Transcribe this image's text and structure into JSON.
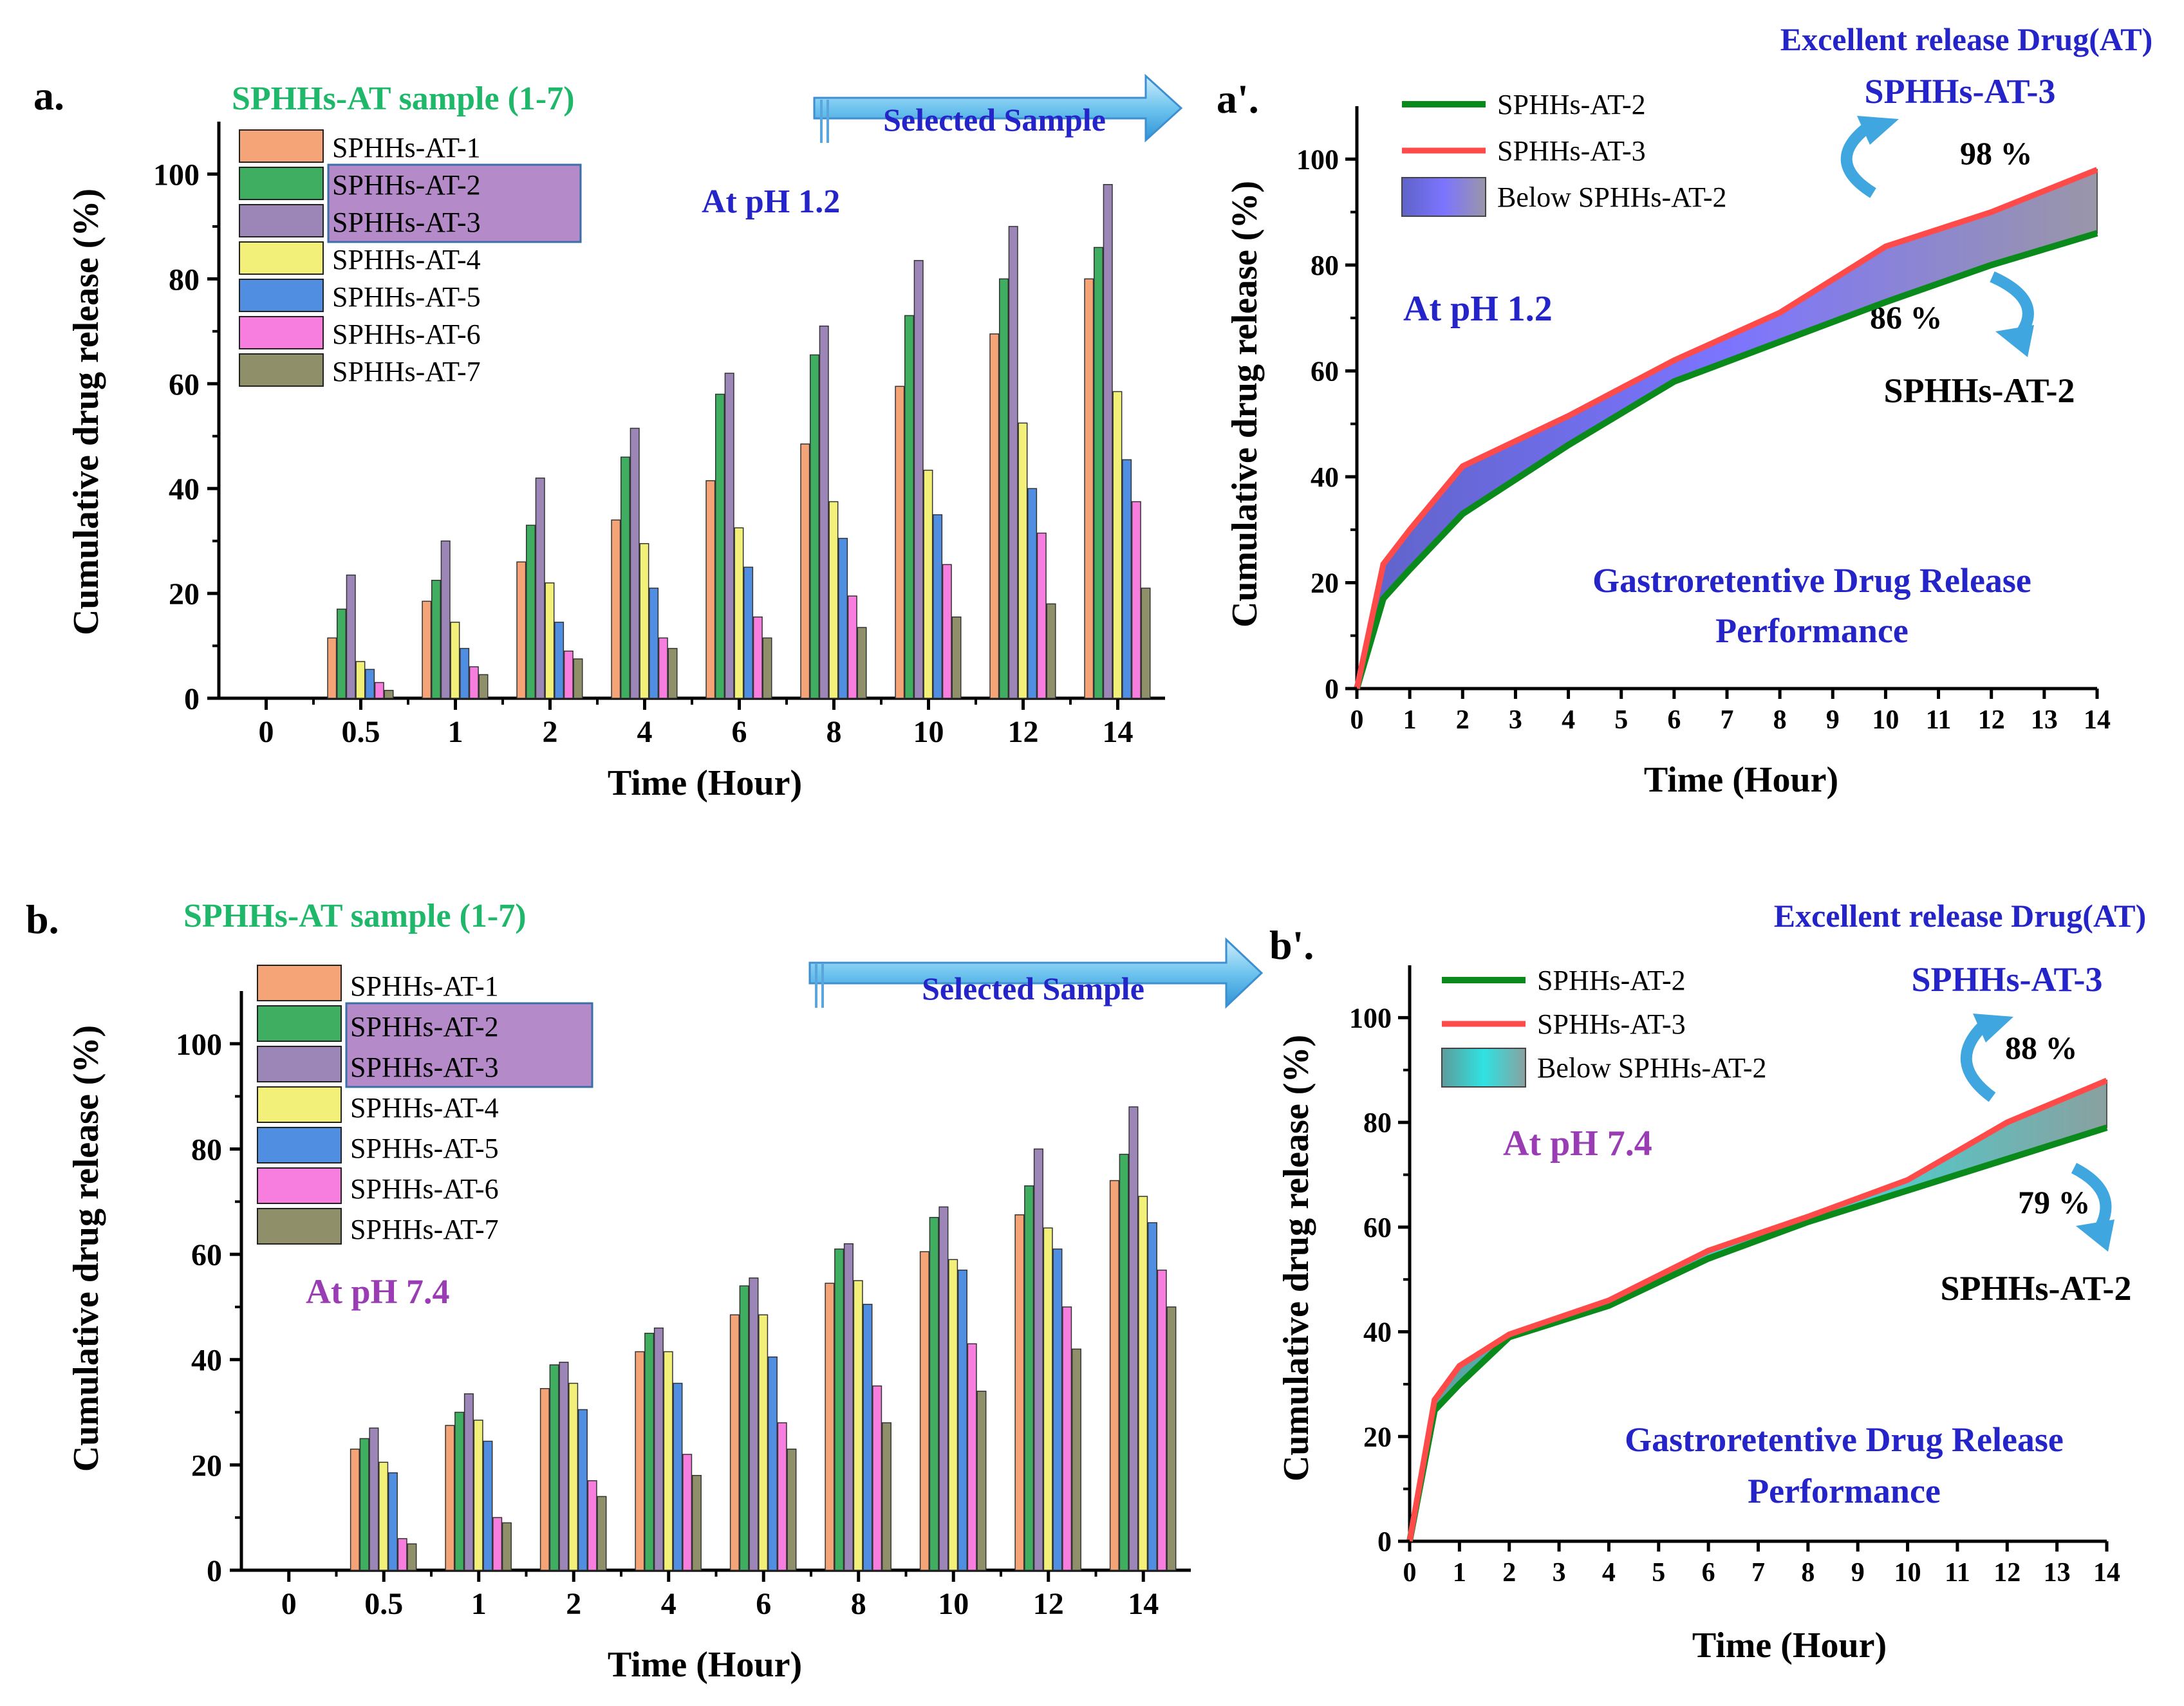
{
  "colors": {
    "s1": "#f5a477",
    "s2": "#3fae60",
    "s3": "#9c86b8",
    "s4": "#f3f07a",
    "s5": "#4f8ee0",
    "s6": "#f77dde",
    "s7": "#8f8f6a",
    "green_line": "#0b8a1c",
    "red_line": "#ff4a4a",
    "fill_a": "#7b6ff2",
    "fill_b": "#2fd8d8",
    "title_green": "#1fb86a",
    "text_blue": "#2424c8",
    "text_purple": "#9a3db4",
    "arrow_blue": "#3fa6e0",
    "highlight": "#b48ac9"
  },
  "panels": [
    {
      "label": "a.",
      "title": "SPHHs-AT sample (1-7)",
      "ph_label": "At pH 1.2",
      "arrow_label": "Selected Sample",
      "legend": [
        "SPHHs-AT-1",
        "SPHHs-AT-2",
        "SPHHs-AT-3",
        "SPHHs-AT-4",
        "SPHHs-AT-5",
        "SPHHs-AT-6",
        "SPHHs-AT-7"
      ]
    },
    {
      "label": "a'.",
      "top_note": "Excellent release Drug(AT)",
      "top_sample": "SPHHs-AT-3",
      "top_pct": "98 %",
      "bottom_pct": "86 %",
      "bottom_sample": "SPHHs-AT-2",
      "ph_label": "At pH 1.2",
      "performance_line1": "Gastroretentive Drug Release",
      "performance_line2": "Performance",
      "legend": [
        "SPHHs-AT-2",
        "SPHHs-AT-3",
        "Below SPHHs-AT-2"
      ]
    },
    {
      "label": "b.",
      "title": "SPHHs-AT sample (1-7)",
      "ph_label": "At pH 7.4",
      "arrow_label": "Selected Sample",
      "legend": [
        "SPHHs-AT-1",
        "SPHHs-AT-2",
        "SPHHs-AT-3",
        "SPHHs-AT-4",
        "SPHHs-AT-5",
        "SPHHs-AT-6",
        "SPHHs-AT-7"
      ]
    },
    {
      "label": "b'.",
      "top_note": "Excellent release Drug(AT)",
      "top_sample": "SPHHs-AT-3",
      "top_pct": "88 %",
      "bottom_pct": "79 %",
      "bottom_sample": "SPHHs-AT-2",
      "ph_label": "At pH 7.4",
      "performance_line1": "Gastroretentive Drug Release",
      "performance_line2": "Performance",
      "legend": [
        "SPHHs-AT-2",
        "SPHHs-AT-3",
        "Below SPHHs-AT-2"
      ]
    }
  ],
  "chart_data": [
    {
      "type": "bar",
      "title": "SPHHs-AT sample (1-7)",
      "xlabel": "Time (Hour)",
      "ylabel": "Cumulative drug release (%)",
      "ylim": [
        0,
        110
      ],
      "yticks": [
        "0",
        "20",
        "40",
        "60",
        "80",
        "100"
      ],
      "categories": [
        "0",
        "0.5",
        "1",
        "2",
        "4",
        "6",
        "8",
        "10",
        "12",
        "14"
      ],
      "series": [
        {
          "name": "SPHHs-AT-1",
          "values": [
            0,
            11.5,
            18.5,
            26,
            34,
            41.5,
            48.5,
            59.5,
            69.5,
            80
          ]
        },
        {
          "name": "SPHHs-AT-2",
          "values": [
            0,
            17,
            22.5,
            33,
            46,
            58,
            65.5,
            73,
            80,
            86
          ]
        },
        {
          "name": "SPHHs-AT-3",
          "values": [
            0,
            23.5,
            30,
            42,
            51.5,
            62,
            71,
            83.5,
            90,
            98
          ]
        },
        {
          "name": "SPHHs-AT-4",
          "values": [
            0,
            7,
            14.5,
            22,
            29.5,
            32.5,
            37.5,
            43.5,
            52.5,
            58.5
          ]
        },
        {
          "name": "SPHHs-AT-5",
          "values": [
            0,
            5.5,
            9.5,
            14.5,
            21,
            25,
            30.5,
            35,
            40,
            45.5
          ]
        },
        {
          "name": "SPHHs-AT-6",
          "values": [
            0,
            3,
            6,
            9,
            11.5,
            15.5,
            19.5,
            25.5,
            31.5,
            37.5
          ]
        },
        {
          "name": "SPHHs-AT-7",
          "values": [
            0,
            1.5,
            4.5,
            7.5,
            9.5,
            11.5,
            13.5,
            15.5,
            18,
            21
          ]
        }
      ]
    },
    {
      "type": "area",
      "xlabel": "Time (Hour)",
      "ylabel": "Cumulative drug release (%)",
      "xlim": [
        0,
        14
      ],
      "ylim": [
        0,
        110
      ],
      "xticks": [
        "0",
        "1",
        "2",
        "3",
        "4",
        "5",
        "6",
        "7",
        "8",
        "9",
        "10",
        "11",
        "12",
        "13",
        "14"
      ],
      "yticks": [
        "0",
        "20",
        "40",
        "60",
        "80",
        "100"
      ],
      "series": [
        {
          "name": "SPHHs-AT-2",
          "x": [
            0,
            0.5,
            1,
            2,
            4,
            6,
            8,
            10,
            12,
            14
          ],
          "y": [
            0,
            17,
            22.5,
            33,
            46,
            58,
            65.5,
            73,
            80,
            86
          ]
        },
        {
          "name": "SPHHs-AT-3",
          "x": [
            0,
            0.5,
            1,
            2,
            4,
            6,
            8,
            10,
            12,
            14
          ],
          "y": [
            0,
            23.5,
            30,
            42,
            51.5,
            62,
            71,
            83.5,
            90,
            98
          ]
        }
      ]
    },
    {
      "type": "bar",
      "title": "SPHHs-AT sample (1-7)",
      "xlabel": "Time (Hour)",
      "ylabel": "Cumulative drug release (%)",
      "ylim": [
        0,
        110
      ],
      "yticks": [
        "0",
        "20",
        "40",
        "60",
        "80",
        "100"
      ],
      "categories": [
        "0",
        "0.5",
        "1",
        "2",
        "4",
        "6",
        "8",
        "10",
        "12",
        "14"
      ],
      "series": [
        {
          "name": "SPHHs-AT-1",
          "values": [
            0,
            23,
            27.5,
            34.5,
            41.5,
            48.5,
            54.5,
            60.5,
            67.5,
            74
          ]
        },
        {
          "name": "SPHHs-AT-2",
          "values": [
            0,
            25,
            30,
            39,
            45,
            54,
            61,
            67,
            73,
            79
          ]
        },
        {
          "name": "SPHHs-AT-3",
          "values": [
            0,
            27,
            33.5,
            39.5,
            46,
            55.5,
            62,
            69,
            80,
            88
          ]
        },
        {
          "name": "SPHHs-AT-4",
          "values": [
            0,
            20.5,
            28.5,
            35.5,
            41.5,
            48.5,
            55,
            59,
            65,
            71
          ]
        },
        {
          "name": "SPHHs-AT-5",
          "values": [
            0,
            18.5,
            24.5,
            30.5,
            35.5,
            40.5,
            50.5,
            57,
            61,
            66
          ]
        },
        {
          "name": "SPHHs-AT-6",
          "values": [
            0,
            6,
            10,
            17,
            22,
            28,
            35,
            43,
            50,
            57
          ]
        },
        {
          "name": "SPHHs-AT-7",
          "values": [
            0,
            5,
            9,
            14,
            18,
            23,
            28,
            34,
            42,
            50
          ]
        }
      ]
    },
    {
      "type": "area",
      "xlabel": "Time (Hour)",
      "ylabel": "Cumulative drug release (%)",
      "xlim": [
        0,
        14
      ],
      "ylim": [
        0,
        110
      ],
      "xticks": [
        "0",
        "1",
        "2",
        "3",
        "4",
        "5",
        "6",
        "7",
        "8",
        "9",
        "10",
        "11",
        "12",
        "13",
        "14"
      ],
      "yticks": [
        "0",
        "20",
        "40",
        "60",
        "80",
        "100"
      ],
      "series": [
        {
          "name": "SPHHs-AT-2",
          "x": [
            0,
            0.5,
            1,
            2,
            4,
            6,
            8,
            10,
            12,
            14
          ],
          "y": [
            0,
            25,
            30,
            39,
            45,
            54,
            61,
            67,
            73,
            79
          ]
        },
        {
          "name": "SPHHs-AT-3",
          "x": [
            0,
            0.5,
            1,
            2,
            4,
            6,
            8,
            10,
            12,
            14
          ],
          "y": [
            0,
            27,
            33.5,
            39.5,
            46,
            55.5,
            62,
            69,
            80,
            88
          ]
        }
      ]
    }
  ]
}
